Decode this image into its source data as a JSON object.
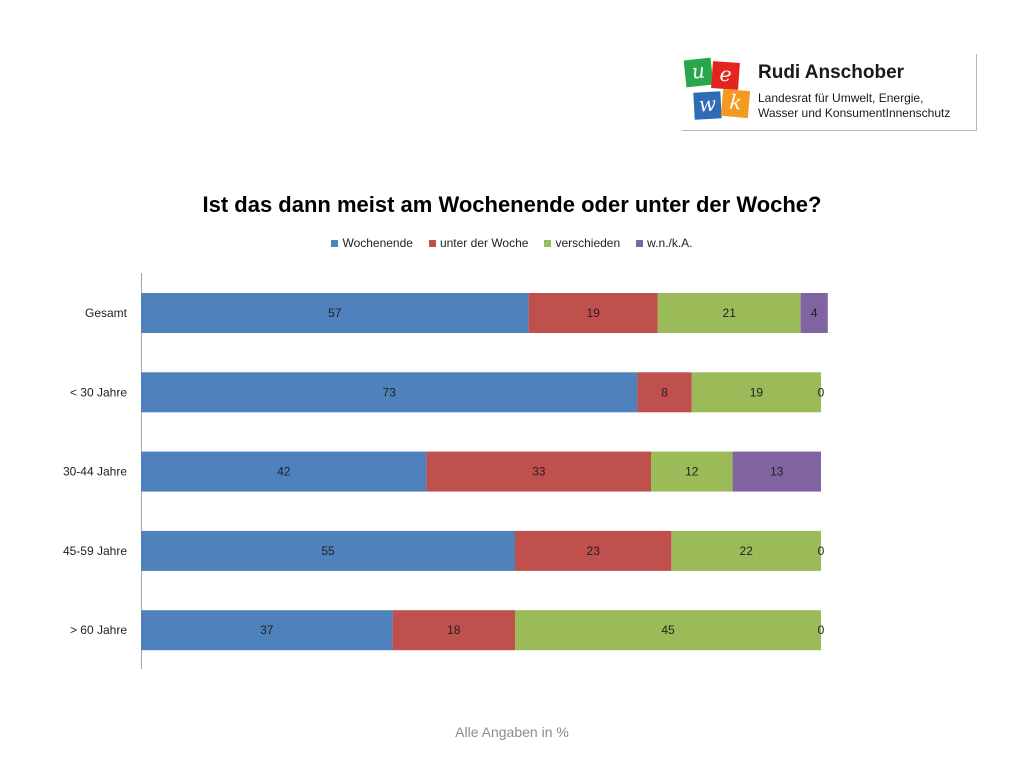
{
  "logo": {
    "letters": [
      "u",
      "e",
      "w",
      "k"
    ],
    "tile_colors": [
      "#2aa64b",
      "#e2261f",
      "#2e6cb5",
      "#f39b1f"
    ],
    "name": "Rudi Anschober",
    "subtitle_line1": "Landesrat für Umwelt, Energie,",
    "subtitle_line2": "Wasser und KonsumentInnenschutz"
  },
  "footnote": "Alle Angaben in %",
  "chart_data": {
    "type": "bar",
    "orientation": "horizontal",
    "stacked": true,
    "title": "Ist das dann meist am Wochenende oder unter der Woche?",
    "categories": [
      "Gesamt",
      "< 30 Jahre",
      "30-44 Jahre",
      "45-59 Jahre",
      "> 60 Jahre"
    ],
    "series": [
      {
        "name": "Wochenende",
        "color": "#4f81bd",
        "values": [
          57,
          73,
          42,
          55,
          37
        ]
      },
      {
        "name": "unter der Woche",
        "color": "#c0504d",
        "values": [
          19,
          8,
          33,
          23,
          18
        ]
      },
      {
        "name": "verschieden",
        "color": "#9bbb59",
        "values": [
          21,
          19,
          12,
          22,
          45
        ]
      },
      {
        "name": "w.n./k.A.",
        "color": "#8064a2",
        "values": [
          4,
          0,
          13,
          0,
          0
        ]
      }
    ],
    "xlim": [
      0,
      100
    ],
    "legend_position": "top",
    "grid": false
  }
}
